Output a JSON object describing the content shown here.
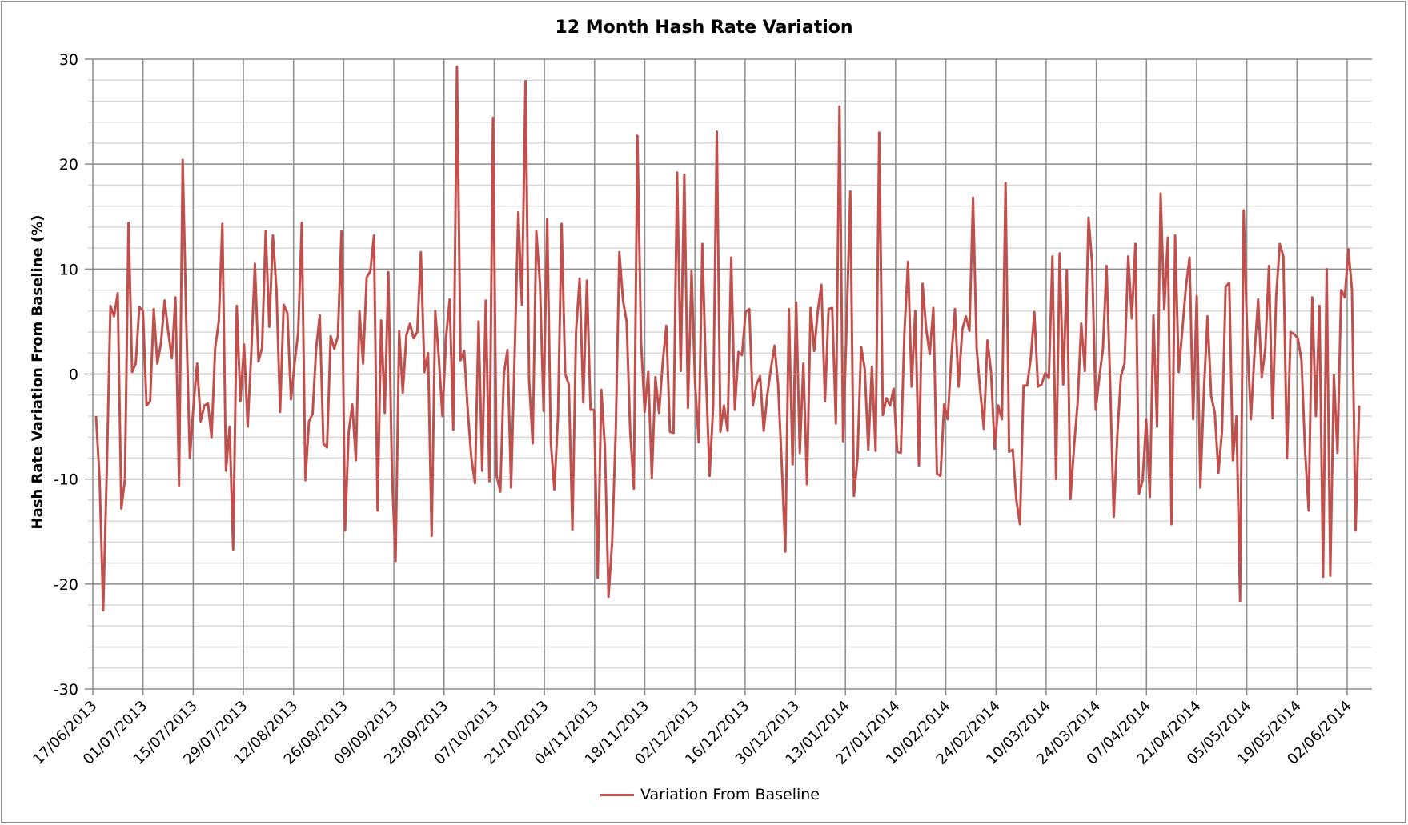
{
  "chart_data": {
    "type": "line",
    "title": "12 Month Hash Rate Variation",
    "xlabel": "",
    "ylabel": "Hash Rate Variation From Baseline (%)",
    "ylim": [
      -30,
      30
    ],
    "yticks": [
      -30,
      -20,
      -10,
      0,
      10,
      20,
      30
    ],
    "y_minor_step": 2,
    "grid": true,
    "legend_position": "bottom",
    "x_start": "17/06/2013",
    "x_end": "10/06/2014",
    "x_tick_labels": [
      "17/06/2013",
      "01/07/2013",
      "15/07/2013",
      "29/07/2013",
      "12/08/2013",
      "26/08/2013",
      "09/09/2013",
      "23/09/2013",
      "07/10/2013",
      "21/10/2013",
      "04/11/2013",
      "18/11/2013",
      "02/12/2013",
      "16/12/2013",
      "30/12/2013",
      "13/01/2014",
      "27/01/2014",
      "10/02/2014",
      "24/02/2014",
      "10/03/2014",
      "24/03/2014",
      "07/04/2014",
      "21/04/2014",
      "05/05/2014",
      "19/05/2014",
      "02/06/2014"
    ],
    "series": [
      {
        "name": "Variation From Baseline",
        "color": "#c0504d",
        "values": [
          -4,
          -10,
          -22.5,
          -9,
          6.5,
          5.5,
          7.7,
          -12.8,
          -10,
          14.4,
          0.2,
          1,
          6.4,
          6,
          -3,
          -2.6,
          6.2,
          1,
          3,
          7,
          4,
          1.5,
          7.3,
          -10.6,
          20.4,
          5,
          -8,
          -3,
          1,
          -4.5,
          -3,
          -2.8,
          -6,
          2.5,
          5,
          14.3,
          -9.2,
          -5,
          -16.7,
          6.5,
          -2.6,
          2.8,
          -5,
          2,
          10.5,
          1.2,
          2.5,
          13.6,
          4.5,
          13.2,
          8,
          -3.6,
          6.6,
          5.8,
          -2.4,
          1,
          4,
          14.4,
          -10.1,
          -4.5,
          -3.8,
          2.5,
          5.6,
          -6.6,
          -7,
          3.6,
          2.4,
          3.6,
          13.6,
          -14.9,
          -5.5,
          -2.9,
          -8.2,
          6,
          1,
          9.2,
          9.8,
          13.2,
          -13,
          5.1,
          -3.7,
          9.7,
          -9.5,
          -17.8,
          4.1,
          -1.8,
          3.7,
          4.8,
          3.4,
          4,
          11.6,
          0.2,
          2,
          -15.4,
          6,
          1.5,
          -4,
          3.5,
          7.1,
          -5.3,
          29.3,
          1.3,
          2.2,
          -3.5,
          -8,
          -10.4,
          5,
          -9.2,
          7,
          -10.2,
          24.4,
          -9.7,
          -11.2,
          0,
          2.3,
          -10.8,
          2,
          15.4,
          6.6,
          27.9,
          -0.6,
          -6.6,
          13.6,
          8.6,
          -3.5,
          14.8,
          -6.5,
          -11,
          -4,
          14.3,
          0,
          -1,
          -14.8,
          4,
          9.1,
          -2.7,
          8.9,
          -3.4,
          -3.4,
          -19.4,
          -1.5,
          -7,
          -21.2,
          -16,
          -5.5,
          11.6,
          7,
          5,
          -5.5,
          -10.9,
          22.7,
          3.2,
          -3.6,
          0.2,
          -9.9,
          -0.3,
          -3.7,
          1,
          4.6,
          -5.5,
          -5.6,
          19.2,
          0.3,
          19,
          -3.2,
          9.8,
          -1,
          -6.5,
          12.4,
          0,
          -9.7,
          -3,
          23.1,
          -5.5,
          -3,
          -5.4,
          11.1,
          -3.4,
          2.1,
          1.8,
          5.9,
          6.2,
          -3,
          -1,
          -0.2,
          -5.4,
          -2,
          0.5,
          2.7,
          -1,
          -8.5,
          -16.9,
          6.2,
          -8.6,
          6.8,
          -7.5,
          1,
          -10.5,
          6.3,
          2.2,
          6,
          8.5,
          -2.6,
          6.2,
          6.3,
          -4.7,
          25.5,
          -6.4,
          5,
          17.4,
          -11.6,
          -8,
          2.6,
          0.5,
          -7.2,
          0.7,
          -7.3,
          23,
          -3.9,
          -2.3,
          -3,
          -1.4,
          -7.4,
          -7.5,
          4,
          10.7,
          -1.2,
          6,
          -8.7,
          8.6,
          4.3,
          1.9,
          6.3,
          -9.5,
          -9.7,
          -2.9,
          -4.3,
          1.6,
          6.2,
          -1.2,
          4.2,
          5.5,
          4.1,
          16.8,
          2.4,
          -1.6,
          -5.2,
          3.2,
          0.2,
          -7.1,
          -3,
          -4.3,
          18.2,
          -7.4,
          -7.2,
          -12,
          -14.3,
          -1.1,
          -1.1,
          1.5,
          5.9,
          -1.2,
          -1,
          0.1,
          -0.4,
          11.2,
          -10,
          11.5,
          -1,
          9.9,
          -11.9,
          -6.9,
          -2.7,
          4.8,
          0.3,
          14.9,
          10.5,
          -3.4,
          -0.3,
          2.4,
          10.3,
          -0.8,
          -13.6,
          -5.8,
          -0.2,
          1,
          11.2,
          5.3,
          12.4,
          -11.4,
          -10.1,
          -4.3,
          -11.7,
          5.6,
          -5,
          17.2,
          6.2,
          13,
          -14.3,
          13.2,
          0.2,
          4.2,
          8.3,
          11.1,
          -4.3,
          7.4,
          -10.8,
          -1.5,
          5.5,
          -2.1,
          -3.7,
          -9.4,
          -5.4,
          8.3,
          8.7,
          -8.2,
          -4,
          -21.6,
          15.6,
          3.5,
          -4.3,
          2,
          7.1,
          -0.3,
          2.5,
          10.3,
          -4.2,
          7.4,
          12.4,
          11.2,
          -8,
          4,
          3.8,
          3.4,
          1.3,
          -7.3,
          -13,
          7.3,
          -4,
          6.5,
          -19.3,
          10,
          -19.2,
          -0.1,
          -7.5,
          8,
          7.3,
          11.9,
          8,
          -14.9,
          -3
        ]
      }
    ]
  },
  "title": "12 Month Hash Rate Variation",
  "y_axis_label": "Hash Rate Variation From Baseline (%)",
  "legend": {
    "label": "Variation From Baseline",
    "color": "#c0504d"
  }
}
